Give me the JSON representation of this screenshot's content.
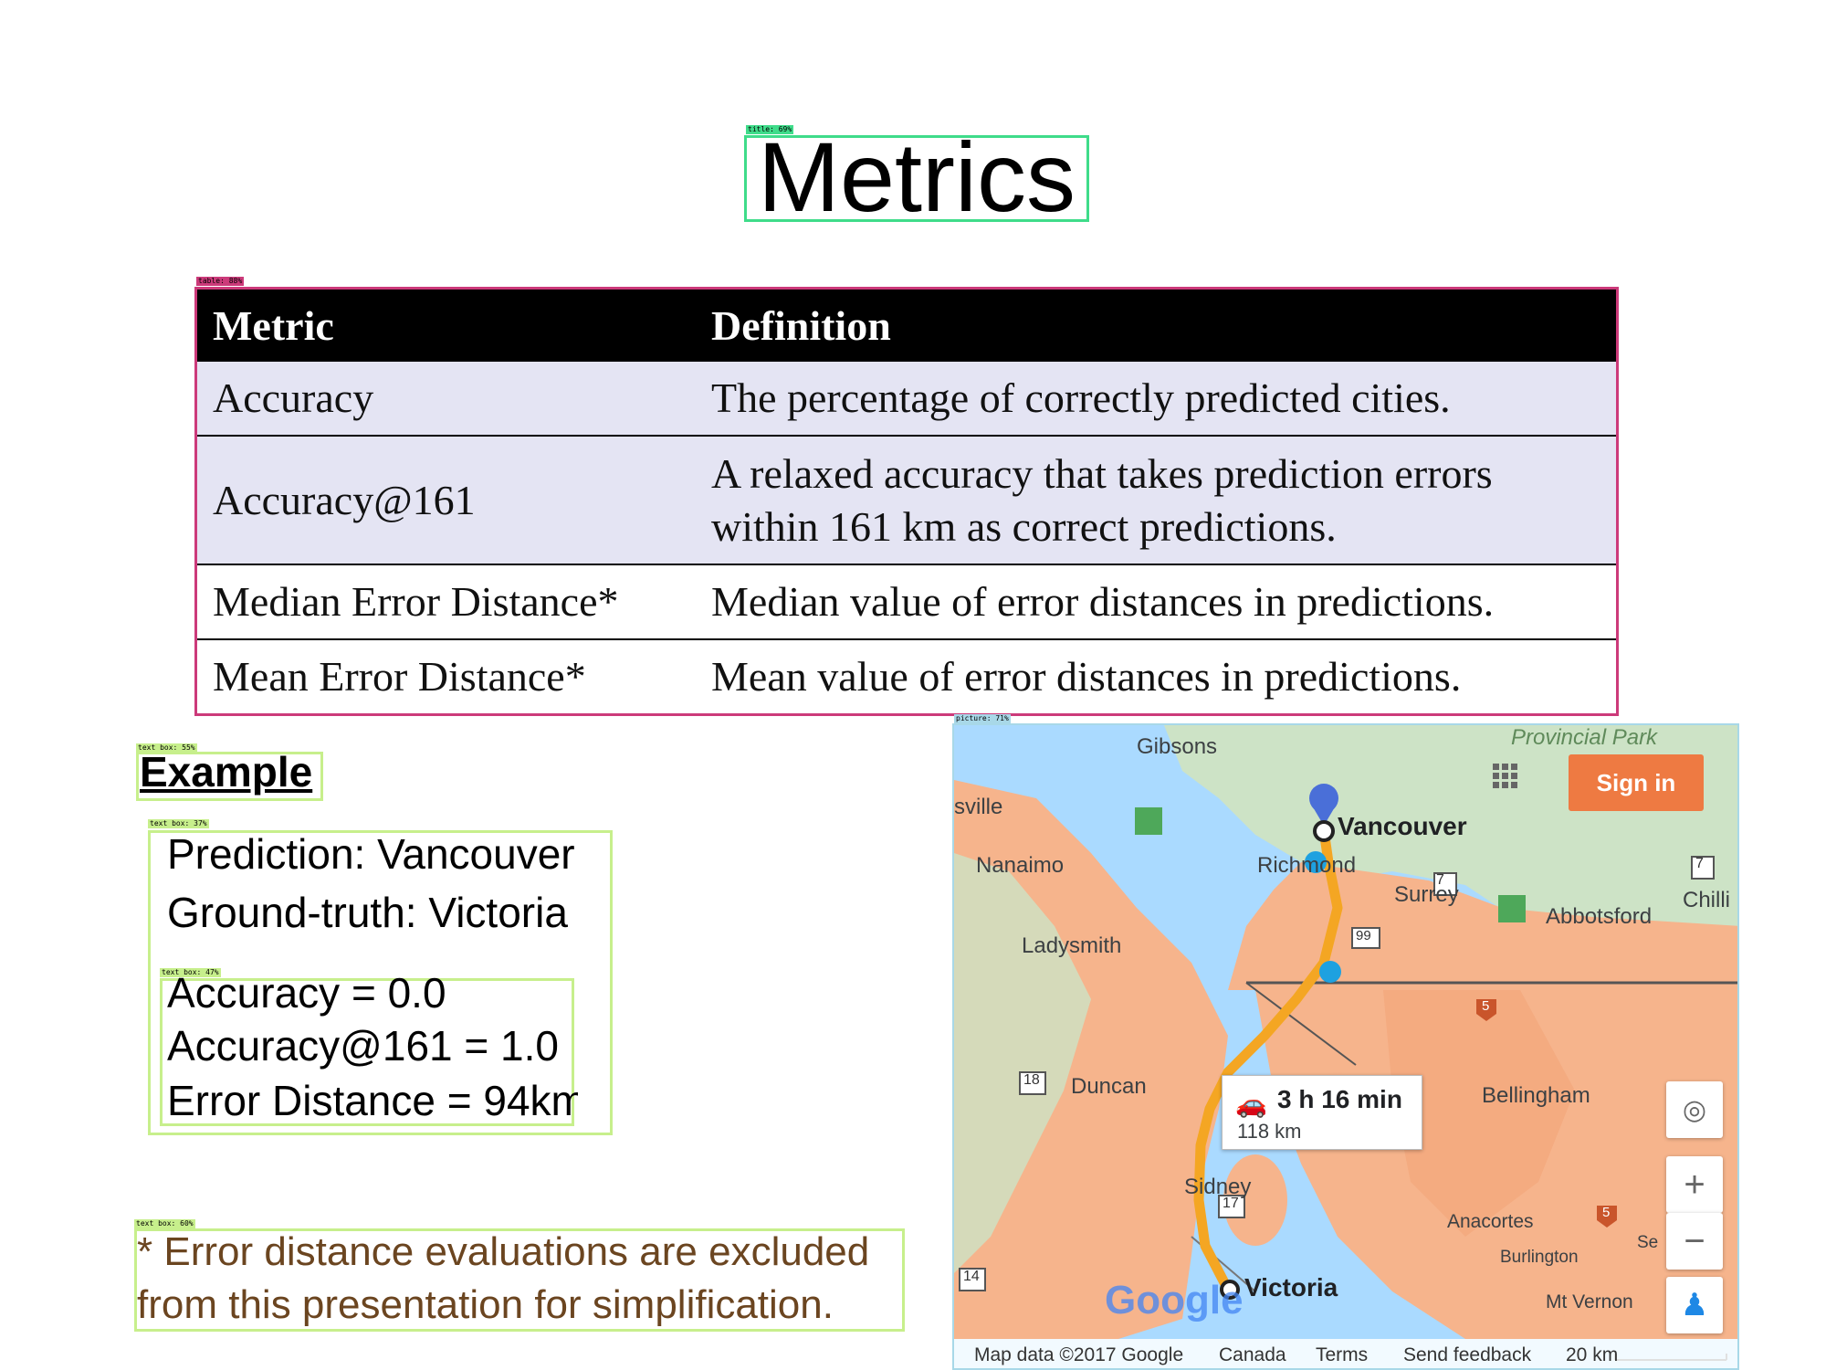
{
  "detections": {
    "title": "title: 69%",
    "table": "table: 88%",
    "example_title": "text box: 55%",
    "prediction_box": "text box: 37%",
    "accuracy_box": "text box: 47%",
    "note_box": "text box: 60%",
    "picture": "picture: 71%"
  },
  "slide": {
    "title": "Metrics"
  },
  "table": {
    "headers": [
      "Metric",
      "Definition"
    ],
    "rows": [
      {
        "metric": "Accuracy",
        "definition_lines": [
          "The percentage of correctly predicted cities."
        ]
      },
      {
        "metric": "Accuracy@161",
        "definition_lines": [
          "A relaxed accuracy that takes prediction errors",
          "within 161 km as correct predictions."
        ]
      },
      {
        "metric": "Median Error Distance*",
        "definition_lines": [
          "Median value of error distances in predictions."
        ]
      },
      {
        "metric": "Mean Error Distance*",
        "definition_lines": [
          "Mean value of error distances in predictions."
        ]
      }
    ]
  },
  "example": {
    "title": "Example",
    "prediction": "Prediction: Vancouver",
    "ground_truth": "Ground-truth: Victoria",
    "accuracy": "Accuracy = 0.0",
    "accuracy161": "Accuracy@161 = 1.0",
    "error_distance": "Error Distance = 94km"
  },
  "note": {
    "line1": "* Error distance evaluations are excluded",
    "line2": "from this presentation for simplification."
  },
  "map": {
    "sign_in": "Sign in",
    "route_duration": "3 h 16 min",
    "route_distance": "118 km",
    "places": {
      "gibsons": "Gibsons",
      "sville": "sville",
      "vancouver": "Vancouver",
      "richmond": "Richmond",
      "nanaimo": "Nanaimo",
      "surrey": "Surrey",
      "abbotsford": "Abbotsford",
      "chilli": "Chilli",
      "ladysmith": "Ladysmith",
      "duncan": "Duncan",
      "bellingham": "Bellingham",
      "sidney": "Sidney",
      "anacortes": "Anacortes",
      "burlington": "Burlington",
      "se": "Se",
      "mt_vernon": "Mt Vernon",
      "victoria": "Victoria",
      "provincial_park": "Provincial Park"
    },
    "shields": [
      "7",
      "99",
      "7",
      "5",
      "18",
      "17",
      "5",
      "14"
    ],
    "footer": {
      "map_data": "Map data ©2017 Google",
      "canada": "Canada",
      "terms": "Terms",
      "feedback": "Send feedback",
      "scale": "20 km"
    },
    "logo": "Google",
    "colors": {
      "land": "#f6b48c",
      "water": "#aadaff",
      "route": "#f4a623",
      "sign_in": "#ee7a42"
    }
  }
}
